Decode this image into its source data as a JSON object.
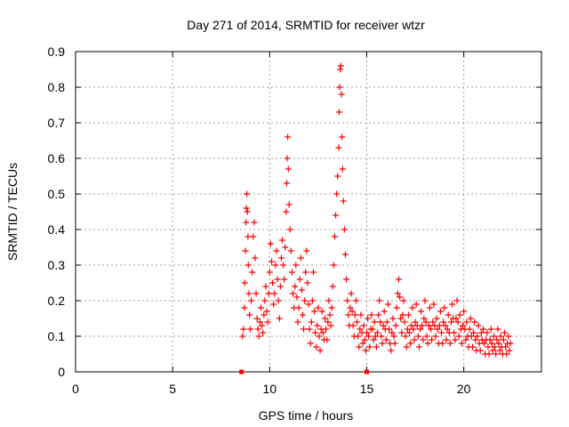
{
  "chart_data": {
    "type": "scatter",
    "title": "Day 271 of 2014, SRMTID for receiver wtzr",
    "xlabel": "GPS time / hours",
    "ylabel": "SRMTID / TECUs",
    "xlim": [
      0,
      24
    ],
    "ylim": [
      0,
      0.9
    ],
    "xticks": [
      0,
      5,
      10,
      15,
      20
    ],
    "yticks": [
      0,
      0.1,
      0.2,
      0.3,
      0.4,
      0.5,
      0.6,
      0.7,
      0.8,
      0.9
    ],
    "xtick_labels": [
      "0",
      "5",
      "10",
      "15",
      "20"
    ],
    "ytick_labels": [
      "0",
      "0.1",
      "0.2",
      "0.3",
      "0.4",
      "0.5",
      "0.6",
      "0.7",
      "0.8",
      "0.9"
    ],
    "grid": true,
    "marker": "+",
    "color": "#ff0000",
    "series": [
      {
        "name": "SRMTID",
        "points": [
          [
            8.6,
            0.1
          ],
          [
            8.65,
            0.12
          ],
          [
            8.7,
            0.18
          ],
          [
            8.72,
            0.25
          ],
          [
            8.75,
            0.34
          ],
          [
            8.78,
            0.42
          ],
          [
            8.8,
            0.46
          ],
          [
            8.82,
            0.5
          ],
          [
            8.85,
            0.45
          ],
          [
            8.88,
            0.38
          ],
          [
            8.9,
            0.3
          ],
          [
            8.93,
            0.22
          ],
          [
            8.96,
            0.16
          ],
          [
            9.0,
            0.12
          ],
          [
            9.05,
            0.2
          ],
          [
            9.1,
            0.28
          ],
          [
            9.15,
            0.38
          ],
          [
            9.2,
            0.42
          ],
          [
            9.25,
            0.32
          ],
          [
            9.3,
            0.22
          ],
          [
            9.35,
            0.15
          ],
          [
            9.4,
            0.12
          ],
          [
            9.45,
            0.1
          ],
          [
            9.5,
            0.14
          ],
          [
            9.55,
            0.18
          ],
          [
            9.6,
            0.13
          ],
          [
            9.65,
            0.11
          ],
          [
            9.7,
            0.16
          ],
          [
            9.75,
            0.2
          ],
          [
            9.8,
            0.24
          ],
          [
            9.85,
            0.17
          ],
          [
            9.9,
            0.14
          ],
          [
            9.95,
            0.22
          ],
          [
            10.0,
            0.28
          ],
          [
            10.05,
            0.36
          ],
          [
            10.1,
            0.31
          ],
          [
            10.15,
            0.25
          ],
          [
            10.2,
            0.19
          ],
          [
            10.25,
            0.22
          ],
          [
            10.3,
            0.3
          ],
          [
            10.35,
            0.34
          ],
          [
            10.4,
            0.26
          ],
          [
            10.45,
            0.2
          ],
          [
            10.5,
            0.15
          ],
          [
            10.55,
            0.24
          ],
          [
            10.6,
            0.32
          ],
          [
            10.65,
            0.37
          ],
          [
            10.7,
            0.3
          ],
          [
            10.75,
            0.26
          ],
          [
            10.8,
            0.35
          ],
          [
            10.85,
            0.45
          ],
          [
            10.88,
            0.53
          ],
          [
            10.9,
            0.6
          ],
          [
            10.93,
            0.66
          ],
          [
            10.96,
            0.57
          ],
          [
            11.0,
            0.47
          ],
          [
            11.05,
            0.4
          ],
          [
            11.1,
            0.34
          ],
          [
            11.15,
            0.28
          ],
          [
            11.2,
            0.22
          ],
          [
            11.25,
            0.18
          ],
          [
            11.3,
            0.24
          ],
          [
            11.35,
            0.3
          ],
          [
            11.4,
            0.21
          ],
          [
            11.45,
            0.14
          ],
          [
            11.5,
            0.18
          ],
          [
            11.55,
            0.26
          ],
          [
            11.6,
            0.32
          ],
          [
            11.65,
            0.23
          ],
          [
            11.7,
            0.16
          ],
          [
            11.75,
            0.12
          ],
          [
            11.8,
            0.2
          ],
          [
            11.85,
            0.28
          ],
          [
            11.9,
            0.34
          ],
          [
            11.95,
            0.25
          ],
          [
            12.0,
            0.19
          ],
          [
            12.05,
            0.12
          ],
          [
            12.1,
            0.08
          ],
          [
            12.15,
            0.14
          ],
          [
            12.2,
            0.2
          ],
          [
            12.25,
            0.28
          ],
          [
            12.3,
            0.17
          ],
          [
            12.35,
            0.11
          ],
          [
            12.4,
            0.07
          ],
          [
            12.45,
            0.13
          ],
          [
            12.5,
            0.18
          ],
          [
            12.55,
            0.1
          ],
          [
            12.6,
            0.06
          ],
          [
            12.65,
            0.12
          ],
          [
            12.7,
            0.17
          ],
          [
            12.75,
            0.11
          ],
          [
            12.8,
            0.09
          ],
          [
            12.85,
            0.15
          ],
          [
            12.9,
            0.12
          ],
          [
            12.95,
            0.09
          ],
          [
            13.0,
            0.14
          ],
          [
            13.05,
            0.2
          ],
          [
            13.1,
            0.16
          ],
          [
            13.15,
            0.13
          ],
          [
            13.2,
            0.18
          ],
          [
            13.25,
            0.24
          ],
          [
            13.3,
            0.3
          ],
          [
            13.35,
            0.38
          ],
          [
            13.4,
            0.44
          ],
          [
            13.45,
            0.5
          ],
          [
            13.5,
            0.55
          ],
          [
            13.55,
            0.63
          ],
          [
            13.58,
            0.73
          ],
          [
            13.6,
            0.8
          ],
          [
            13.63,
            0.85
          ],
          [
            13.66,
            0.86
          ],
          [
            13.7,
            0.78
          ],
          [
            13.73,
            0.66
          ],
          [
            13.76,
            0.57
          ],
          [
            13.8,
            0.48
          ],
          [
            13.85,
            0.4
          ],
          [
            13.9,
            0.33
          ],
          [
            13.95,
            0.26
          ],
          [
            14.0,
            0.2
          ],
          [
            14.05,
            0.16
          ],
          [
            14.1,
            0.13
          ],
          [
            14.15,
            0.18
          ],
          [
            14.2,
            0.22
          ],
          [
            14.25,
            0.17
          ],
          [
            14.3,
            0.13
          ],
          [
            14.35,
            0.1
          ],
          [
            14.4,
            0.16
          ],
          [
            14.45,
            0.2
          ],
          [
            14.5,
            0.14
          ],
          [
            14.55,
            0.1
          ],
          [
            14.6,
            0.07
          ],
          [
            14.65,
            0.12
          ],
          [
            14.7,
            0.16
          ],
          [
            14.75,
            0.11
          ],
          [
            14.8,
            0.08
          ],
          [
            14.85,
            0.13
          ],
          [
            14.9,
            0.09
          ],
          [
            14.95,
            0.06
          ],
          [
            15.0,
            0.11
          ],
          [
            15.05,
            0.15
          ],
          [
            15.1,
            0.1
          ],
          [
            15.15,
            0.07
          ],
          [
            15.2,
            0.12
          ],
          [
            15.25,
            0.16
          ],
          [
            15.3,
            0.12
          ],
          [
            15.35,
            0.09
          ],
          [
            15.4,
            0.14
          ],
          [
            15.45,
            0.1
          ],
          [
            15.5,
            0.07
          ],
          [
            15.55,
            0.11
          ],
          [
            15.6,
            0.16
          ],
          [
            15.65,
            0.2
          ],
          [
            15.7,
            0.14
          ],
          [
            15.75,
            0.1
          ],
          [
            15.8,
            0.08
          ],
          [
            15.85,
            0.13
          ],
          [
            15.9,
            0.17
          ],
          [
            15.95,
            0.12
          ],
          [
            16.0,
            0.09
          ],
          [
            16.05,
            0.14
          ],
          [
            16.1,
            0.19
          ],
          [
            16.15,
            0.12
          ],
          [
            16.2,
            0.08
          ],
          [
            16.25,
            0.06
          ],
          [
            16.3,
            0.11
          ],
          [
            16.35,
            0.15
          ],
          [
            16.4,
            0.1
          ],
          [
            16.45,
            0.08
          ],
          [
            16.5,
            0.13
          ],
          [
            16.55,
            0.18
          ],
          [
            16.6,
            0.22
          ],
          [
            16.65,
            0.26
          ],
          [
            16.7,
            0.21
          ],
          [
            16.75,
            0.15
          ],
          [
            16.8,
            0.11
          ],
          [
            16.85,
            0.16
          ],
          [
            16.9,
            0.2
          ],
          [
            16.95,
            0.14
          ],
          [
            17.0,
            0.1
          ],
          [
            17.05,
            0.07
          ],
          [
            17.1,
            0.12
          ],
          [
            17.15,
            0.16
          ],
          [
            17.2,
            0.11
          ],
          [
            17.25,
            0.08
          ],
          [
            17.3,
            0.13
          ],
          [
            17.35,
            0.18
          ],
          [
            17.4,
            0.12
          ],
          [
            17.45,
            0.09
          ],
          [
            17.5,
            0.14
          ],
          [
            17.55,
            0.19
          ],
          [
            17.6,
            0.13
          ],
          [
            17.65,
            0.1
          ],
          [
            17.7,
            0.07
          ],
          [
            17.75,
            0.12
          ],
          [
            17.8,
            0.17
          ],
          [
            17.85,
            0.13
          ],
          [
            17.9,
            0.09
          ],
          [
            17.95,
            0.15
          ],
          [
            18.0,
            0.2
          ],
          [
            18.05,
            0.14
          ],
          [
            18.1,
            0.1
          ],
          [
            18.15,
            0.08
          ],
          [
            18.2,
            0.13
          ],
          [
            18.25,
            0.18
          ],
          [
            18.3,
            0.12
          ],
          [
            18.35,
            0.09
          ],
          [
            18.4,
            0.14
          ],
          [
            18.45,
            0.19
          ],
          [
            18.5,
            0.13
          ],
          [
            18.55,
            0.1
          ],
          [
            18.6,
            0.15
          ],
          [
            18.65,
            0.12
          ],
          [
            18.7,
            0.08
          ],
          [
            18.75,
            0.13
          ],
          [
            18.8,
            0.17
          ],
          [
            18.85,
            0.11
          ],
          [
            18.9,
            0.08
          ],
          [
            18.95,
            0.14
          ],
          [
            19.0,
            0.18
          ],
          [
            19.05,
            0.13
          ],
          [
            19.1,
            0.09
          ],
          [
            19.15,
            0.12
          ],
          [
            19.2,
            0.16
          ],
          [
            19.25,
            0.11
          ],
          [
            19.3,
            0.08
          ],
          [
            19.35,
            0.14
          ],
          [
            19.4,
            0.19
          ],
          [
            19.45,
            0.15
          ],
          [
            19.5,
            0.11
          ],
          [
            19.55,
            0.09
          ],
          [
            19.6,
            0.15
          ],
          [
            19.65,
            0.2
          ],
          [
            19.7,
            0.14
          ],
          [
            19.75,
            0.1
          ],
          [
            19.8,
            0.16
          ],
          [
            19.85,
            0.12
          ],
          [
            19.9,
            0.08
          ],
          [
            19.95,
            0.13
          ],
          [
            20.0,
            0.17
          ],
          [
            20.05,
            0.12
          ],
          [
            20.1,
            0.09
          ],
          [
            20.15,
            0.14
          ],
          [
            20.2,
            0.1
          ],
          [
            20.25,
            0.07
          ],
          [
            20.3,
            0.12
          ],
          [
            20.35,
            0.15
          ],
          [
            20.4,
            0.1
          ],
          [
            20.45,
            0.07
          ],
          [
            20.5,
            0.11
          ],
          [
            20.55,
            0.14
          ],
          [
            20.6,
            0.09
          ],
          [
            20.65,
            0.06
          ],
          [
            20.7,
            0.1
          ],
          [
            20.75,
            0.13
          ],
          [
            20.8,
            0.08
          ],
          [
            20.85,
            0.06
          ],
          [
            20.9,
            0.11
          ],
          [
            20.95,
            0.09
          ],
          [
            21.0,
            0.12
          ],
          [
            21.05,
            0.08
          ],
          [
            21.1,
            0.05
          ],
          [
            21.15,
            0.09
          ],
          [
            21.2,
            0.11
          ],
          [
            21.25,
            0.07
          ],
          [
            21.3,
            0.05
          ],
          [
            21.35,
            0.09
          ],
          [
            21.4,
            0.12
          ],
          [
            21.45,
            0.08
          ],
          [
            21.5,
            0.06
          ],
          [
            21.55,
            0.1
          ],
          [
            21.6,
            0.07
          ],
          [
            21.65,
            0.05
          ],
          [
            21.7,
            0.09
          ],
          [
            21.75,
            0.12
          ],
          [
            21.8,
            0.08
          ],
          [
            21.85,
            0.06
          ],
          [
            21.9,
            0.1
          ],
          [
            21.95,
            0.07
          ],
          [
            22.0,
            0.05
          ],
          [
            22.05,
            0.09
          ],
          [
            22.1,
            0.11
          ],
          [
            22.15,
            0.07
          ],
          [
            22.2,
            0.05
          ],
          [
            22.25,
            0.08
          ],
          [
            22.3,
            0.1
          ],
          [
            22.35,
            0.06
          ],
          [
            22.4,
            0.08
          ]
        ]
      }
    ],
    "baseline_markers": [
      [
        8.55,
        0
      ],
      [
        15.0,
        0
      ]
    ]
  }
}
